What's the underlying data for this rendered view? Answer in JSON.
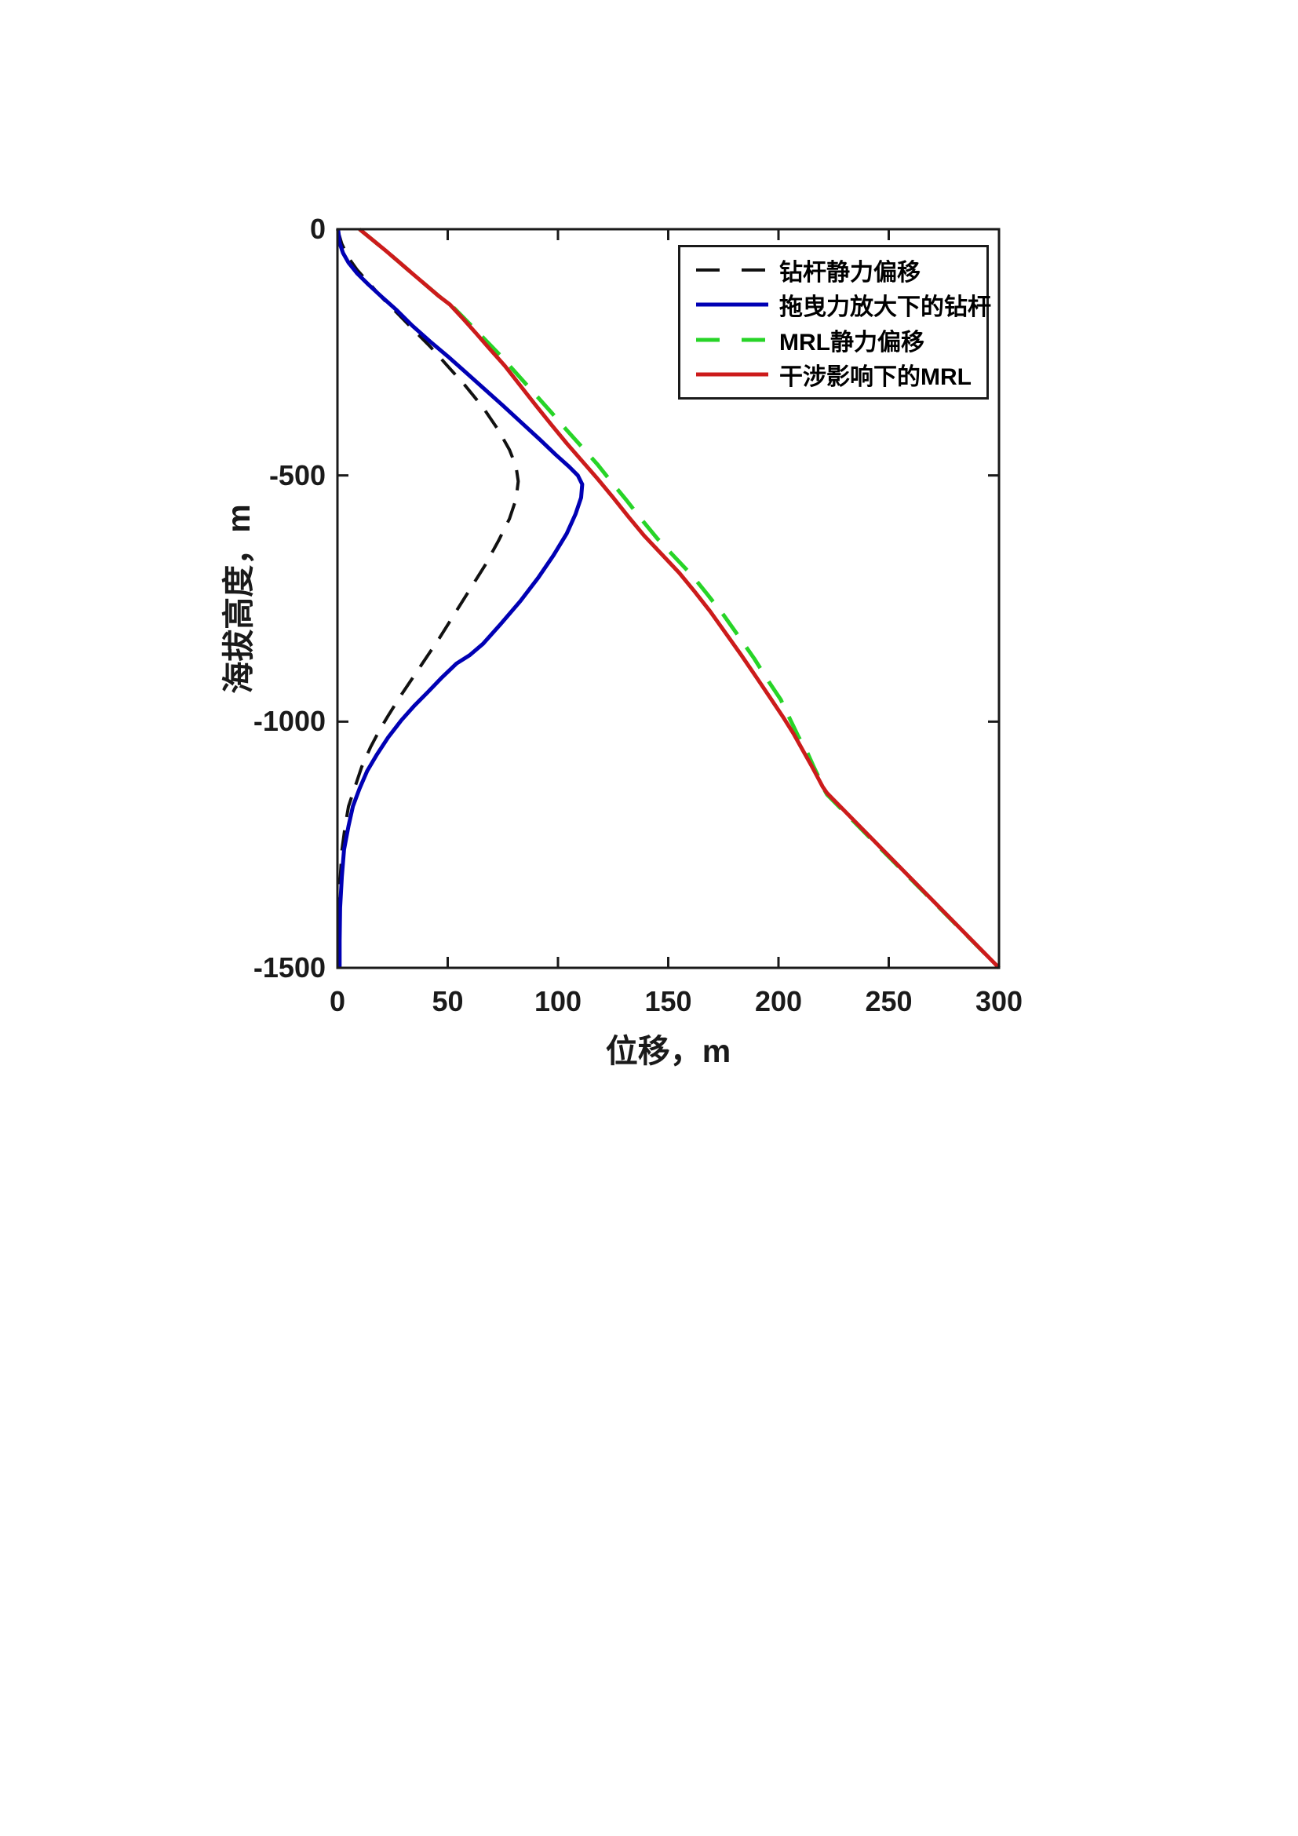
{
  "chart_data": {
    "type": "line",
    "title": "",
    "xlabel": "位移，m",
    "ylabel": "海拔高度，m",
    "xlim": [
      0,
      300
    ],
    "ylim": [
      -1500,
      0
    ],
    "x_ticks": [
      0,
      50,
      100,
      150,
      200,
      250,
      300
    ],
    "y_ticks": [
      0,
      -500,
      -1000,
      -1500
    ],
    "grid": false,
    "legend_position": "upper-right-inside",
    "axis_color": "#1a1a1a",
    "background": "#ffffff",
    "series": [
      {
        "name": "钻杆静力偏移",
        "color": "#111111",
        "style": "dashed",
        "width": 4,
        "points": [
          [
            0,
            0
          ],
          [
            2,
            -30
          ],
          [
            5,
            -58
          ],
          [
            9,
            -83
          ],
          [
            14,
            -108
          ],
          [
            20,
            -138
          ],
          [
            27,
            -170
          ],
          [
            34,
            -202
          ],
          [
            42,
            -238
          ],
          [
            50,
            -278
          ],
          [
            58,
            -318
          ],
          [
            66,
            -362
          ],
          [
            73,
            -408
          ],
          [
            78,
            -448
          ],
          [
            81,
            -482
          ],
          [
            82,
            -512
          ],
          [
            81,
            -548
          ],
          [
            78,
            -588
          ],
          [
            73,
            -633
          ],
          [
            67,
            -682
          ],
          [
            60,
            -732
          ],
          [
            53,
            -782
          ],
          [
            46,
            -832
          ],
          [
            40,
            -872
          ],
          [
            34,
            -912
          ],
          [
            28,
            -952
          ],
          [
            23,
            -988
          ],
          [
            19,
            -1018
          ],
          [
            15,
            -1052
          ],
          [
            11,
            -1092
          ],
          [
            8,
            -1132
          ],
          [
            5,
            -1172
          ],
          [
            3.5,
            -1212
          ],
          [
            2,
            -1262
          ],
          [
            1.2,
            -1322
          ],
          [
            0.8,
            -1402
          ],
          [
            0.7,
            -1500
          ]
        ]
      },
      {
        "name": "拖曳力放大下的钻杆",
        "color": "#0000b4",
        "style": "solid",
        "width": 5,
        "points": [
          [
            0.3,
            0
          ],
          [
            1,
            -28
          ],
          [
            2.5,
            -48
          ],
          [
            5,
            -68
          ],
          [
            9,
            -90
          ],
          [
            14,
            -112
          ],
          [
            20,
            -137
          ],
          [
            27,
            -165
          ],
          [
            34,
            -196
          ],
          [
            42,
            -228
          ],
          [
            50,
            -258
          ],
          [
            58,
            -290
          ],
          [
            66,
            -322
          ],
          [
            75,
            -358
          ],
          [
            84,
            -395
          ],
          [
            92,
            -428
          ],
          [
            99,
            -458
          ],
          [
            105,
            -482
          ],
          [
            109,
            -500
          ],
          [
            111,
            -518
          ],
          [
            110.5,
            -545
          ],
          [
            108,
            -578
          ],
          [
            104,
            -618
          ],
          [
            98,
            -662
          ],
          [
            91,
            -708
          ],
          [
            83,
            -755
          ],
          [
            74,
            -802
          ],
          [
            66,
            -842
          ],
          [
            60,
            -865
          ],
          [
            54,
            -882
          ],
          [
            47,
            -912
          ],
          [
            41,
            -940
          ],
          [
            35,
            -967
          ],
          [
            29,
            -997
          ],
          [
            23,
            -1032
          ],
          [
            18,
            -1066
          ],
          [
            13.5,
            -1100
          ],
          [
            10,
            -1136
          ],
          [
            7,
            -1172
          ],
          [
            5,
            -1212
          ],
          [
            3,
            -1260
          ],
          [
            2,
            -1315
          ],
          [
            1.2,
            -1378
          ],
          [
            1,
            -1445
          ],
          [
            1,
            -1500
          ]
        ]
      },
      {
        "name": "MRL静力偏移",
        "color": "#27d427",
        "style": "dashed",
        "width": 5,
        "points": [
          [
            10,
            0
          ],
          [
            16,
            -22
          ],
          [
            22,
            -44
          ],
          [
            28,
            -67
          ],
          [
            34,
            -90
          ],
          [
            40,
            -113
          ],
          [
            46,
            -136
          ],
          [
            52,
            -156
          ],
          [
            59,
            -188
          ],
          [
            66,
            -220
          ],
          [
            74,
            -257
          ],
          [
            82,
            -297
          ],
          [
            90,
            -337
          ],
          [
            97,
            -372
          ],
          [
            104,
            -408
          ],
          [
            111,
            -443
          ],
          [
            118,
            -478
          ],
          [
            124,
            -512
          ],
          [
            131,
            -550
          ],
          [
            138,
            -590
          ],
          [
            145,
            -628
          ],
          [
            153,
            -666
          ],
          [
            161,
            -704
          ],
          [
            168,
            -743
          ],
          [
            175,
            -783
          ],
          [
            182,
            -827
          ],
          [
            189,
            -872
          ],
          [
            195,
            -915
          ],
          [
            201,
            -955
          ],
          [
            205,
            -993
          ],
          [
            209,
            -1030
          ],
          [
            213,
            -1062
          ],
          [
            216,
            -1092
          ],
          [
            219,
            -1120
          ],
          [
            221,
            -1140
          ],
          [
            222,
            -1148
          ],
          [
            300,
            -1500
          ]
        ]
      },
      {
        "name": "干涉影响下的MRL",
        "color": "#cc1b1b",
        "style": "solid",
        "width": 5,
        "points": [
          [
            10,
            0
          ],
          [
            16,
            -22
          ],
          [
            22,
            -44
          ],
          [
            28,
            -67
          ],
          [
            34,
            -90
          ],
          [
            40,
            -113
          ],
          [
            46,
            -136
          ],
          [
            51,
            -153
          ],
          [
            57,
            -182
          ],
          [
            63,
            -212
          ],
          [
            69,
            -243
          ],
          [
            76,
            -278
          ],
          [
            83,
            -318
          ],
          [
            90,
            -358
          ],
          [
            97,
            -397
          ],
          [
            104,
            -435
          ],
          [
            111,
            -471
          ],
          [
            118,
            -507
          ],
          [
            125,
            -545
          ],
          [
            132,
            -584
          ],
          [
            139,
            -622
          ],
          [
            147,
            -660
          ],
          [
            155,
            -698
          ],
          [
            162,
            -736
          ],
          [
            169,
            -776
          ],
          [
            176,
            -820
          ],
          [
            183,
            -864
          ],
          [
            190,
            -910
          ],
          [
            196,
            -950
          ],
          [
            202,
            -990
          ],
          [
            207,
            -1026
          ],
          [
            211,
            -1058
          ],
          [
            215,
            -1090
          ],
          [
            218,
            -1115
          ],
          [
            220,
            -1132
          ],
          [
            222,
            -1145
          ],
          [
            300,
            -1500
          ]
        ]
      }
    ]
  }
}
